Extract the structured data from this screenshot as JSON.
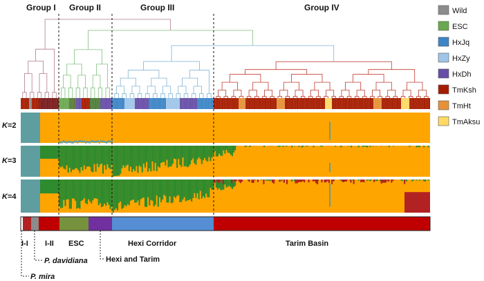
{
  "groups": [
    {
      "label": "Group I"
    },
    {
      "label": "Group II"
    },
    {
      "label": "Group III"
    },
    {
      "label": "Group IV"
    }
  ],
  "k_labels": [
    {
      "k": "K",
      "value": "=2"
    },
    {
      "k": "K",
      "value": "=3"
    },
    {
      "k": "K",
      "value": "=4"
    }
  ],
  "legend": [
    {
      "label": "Wild",
      "color": "#8c8c8c"
    },
    {
      "label": "ESC",
      "color": "#6aa84f"
    },
    {
      "label": "HxJq",
      "color": "#3d85c6"
    },
    {
      "label": "HxZy",
      "color": "#9fc5e8"
    },
    {
      "label": "HxDh",
      "color": "#674ea7"
    },
    {
      "label": "TmKsh",
      "color": "#a61c00"
    },
    {
      "label": "TmHt",
      "color": "#e69138"
    },
    {
      "label": "TmAksu",
      "color": "#ffd966"
    }
  ],
  "bottom_labels": {
    "i_i": "I-I",
    "i_ii": "I-II",
    "esc": "ESC",
    "hexi": "Hexi Corridor",
    "tarim": "Tarim Basin"
  },
  "callouts": {
    "davidiana": "P. davidiana",
    "hexi_tarim": "Hexi and Tarim",
    "mira": "P. mira"
  },
  "colors": {
    "teal": "#5f9ea0",
    "green": "#2e8b2e",
    "orange": "#ffa500",
    "red": "#b22222",
    "tree_group1": "#b07a8c",
    "tree_group2": "#7fbf7f",
    "tree_group3": "#7fb3d5",
    "tree_group4": "#c0392b"
  }
}
